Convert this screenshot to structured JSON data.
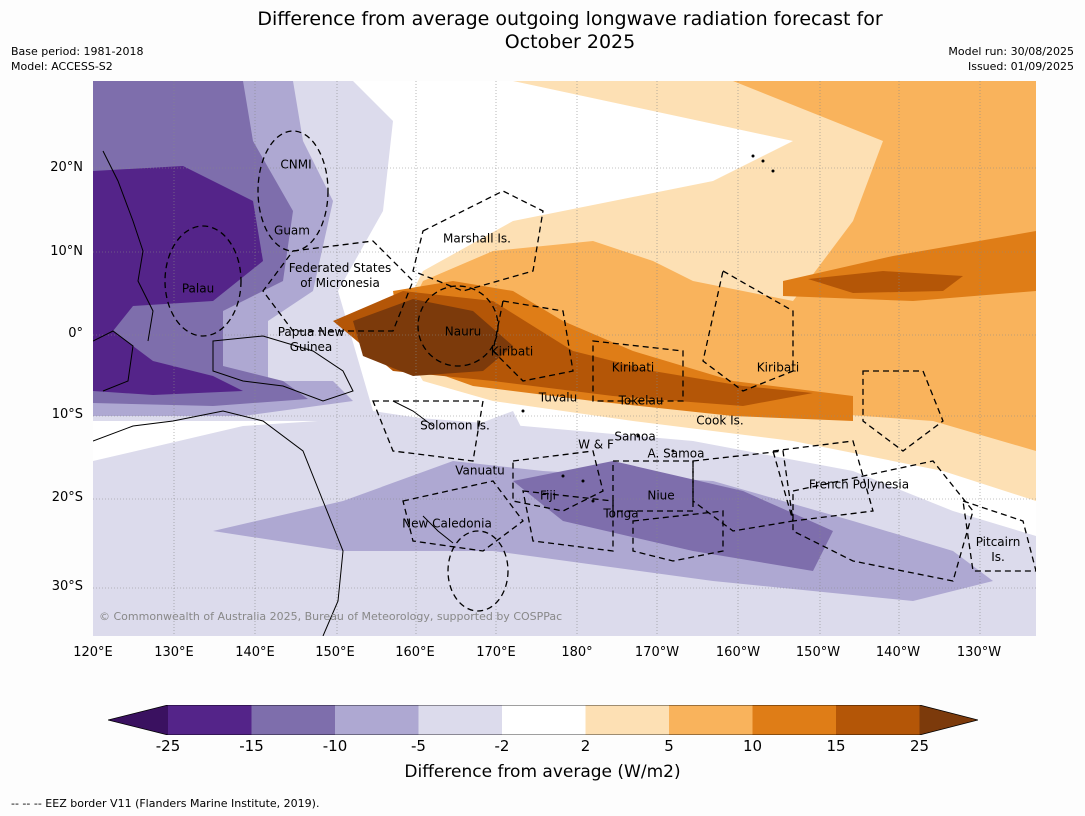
{
  "title_line1": "Difference from average outgoing longwave radiation forecast for",
  "title_line2": "October 2025",
  "base_period": "Base period: 1981-2018",
  "model": "Model: ACCESS-S2",
  "model_run": "Model run: 30/08/2025",
  "issued": "Issued: 01/09/2025",
  "lat_labels": [
    "20°N",
    "10°N",
    "0°",
    "10°S",
    "20°S",
    "30°S"
  ],
  "lon_labels": [
    "120°E",
    "130°E",
    "140°E",
    "150°E",
    "160°E",
    "170°E",
    "180°",
    "170°W",
    "160°W",
    "150°W",
    "140°W",
    "130°W"
  ],
  "regions": [
    {
      "name": "CNMI"
    },
    {
      "name": "Guam"
    },
    {
      "name": "Marshall Is."
    },
    {
      "name": "Federated States\nof Micronesia"
    },
    {
      "name": "Palau"
    },
    {
      "name": "Papua New\nGuinea"
    },
    {
      "name": "Nauru"
    },
    {
      "name": "Kiribati"
    },
    {
      "name": "Kiribati"
    },
    {
      "name": "Kiribati"
    },
    {
      "name": "Tuvalu"
    },
    {
      "name": "Tokelau"
    },
    {
      "name": "Cook Is."
    },
    {
      "name": "Solomon Is."
    },
    {
      "name": "Samoa"
    },
    {
      "name": "W & F"
    },
    {
      "name": "A. Samoa"
    },
    {
      "name": "Vanuatu"
    },
    {
      "name": "Fiji"
    },
    {
      "name": "Niue"
    },
    {
      "name": "Tonga"
    },
    {
      "name": "New Caledonia"
    },
    {
      "name": "French Polynesia"
    },
    {
      "name": "Pitcairn\nIs."
    }
  ],
  "copyright": "© Commonwealth of Australia 2025, Bureau of Meteorology, supported by COSPPac",
  "colorbar": {
    "title": "Difference from average (W/m2)",
    "tick_labels": [
      "-25",
      "-15",
      "-10",
      "-5",
      "-2",
      "2",
      "5",
      "10",
      "15",
      "25"
    ],
    "colors": [
      "#3a1160",
      "#542489",
      "#7e6eac",
      "#aea8d2",
      "#dcdbec",
      "#ffffff",
      "#fde0b4",
      "#f9b35c",
      "#df7d17",
      "#b45607",
      "#7c3a0b"
    ]
  },
  "footnote": "--  --  -- EEZ border V11 (Flanders Marine Institute, 2019)."
}
